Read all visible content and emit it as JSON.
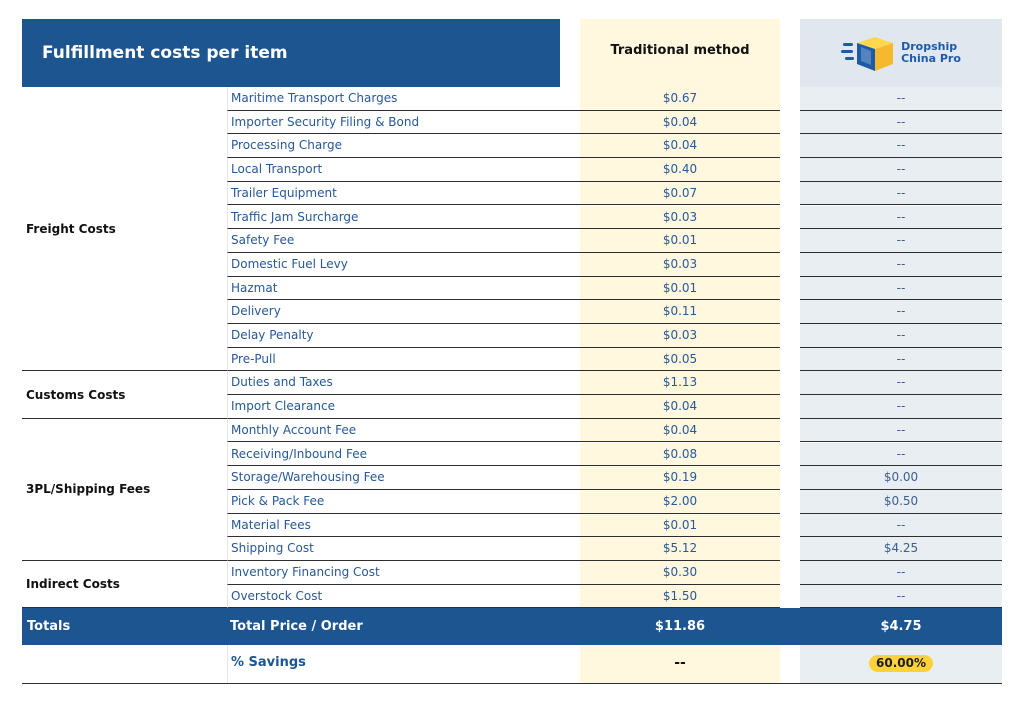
{
  "header": {
    "title": "Fulfillment costs per item",
    "traditional_label": "Traditional method",
    "brand_line1": "Dropship",
    "brand_line2": "China Pro"
  },
  "rows": [
    {
      "item": "Maritime Transport Charges",
      "traditional": "$0.67",
      "dcp": "--"
    },
    {
      "item": "Importer Security Filing & Bond",
      "traditional": "$0.04",
      "dcp": "--"
    },
    {
      "item": "Processing Charge",
      "traditional": "$0.04",
      "dcp": "--"
    },
    {
      "item": "Local Transport",
      "traditional": "$0.40",
      "dcp": "--"
    },
    {
      "item": "Trailer Equipment",
      "traditional": "$0.07",
      "dcp": "--"
    },
    {
      "item": "Traffic Jam Surcharge",
      "traditional": "$0.03",
      "dcp": "--"
    },
    {
      "item": "Safety Fee",
      "traditional": "$0.01",
      "dcp": "--"
    },
    {
      "item": "Domestic Fuel Levy",
      "traditional": "$0.03",
      "dcp": "--"
    },
    {
      "item": "Hazmat",
      "traditional": "$0.01",
      "dcp": "--"
    },
    {
      "item": "Delivery",
      "traditional": "$0.11",
      "dcp": "--"
    },
    {
      "item": "Delay Penalty",
      "traditional": "$0.03",
      "dcp": "--"
    },
    {
      "item": "Pre-Pull",
      "traditional": "$0.05",
      "dcp": "--"
    },
    {
      "item": "Duties and Taxes",
      "traditional": "$1.13",
      "dcp": "--"
    },
    {
      "item": "Import Clearance",
      "traditional": "$0.04",
      "dcp": "--"
    },
    {
      "item": "Monthly Account Fee",
      "traditional": "$0.04",
      "dcp": "--"
    },
    {
      "item": "Receiving/Inbound Fee",
      "traditional": "$0.08",
      "dcp": "--"
    },
    {
      "item": "Storage/Warehousing Fee",
      "traditional": "$0.19",
      "dcp": "$0.00"
    },
    {
      "item": "Pick & Pack Fee",
      "traditional": "$2.00",
      "dcp": "$0.50"
    },
    {
      "item": "Material Fees",
      "traditional": "$0.01",
      "dcp": "--"
    },
    {
      "item": "Shipping Cost",
      "traditional": "$5.12",
      "dcp": "$4.25"
    },
    {
      "item": "Inventory Financing Cost",
      "traditional": "$0.30",
      "dcp": "--"
    },
    {
      "item": "Overstock Cost",
      "traditional": "$1.50",
      "dcp": "--"
    }
  ],
  "groups": [
    {
      "name": "Freight Costs",
      "start": 0,
      "count": 12
    },
    {
      "name": "Customs Costs",
      "start": 12,
      "count": 2
    },
    {
      "name": "3PL/Shipping Fees",
      "start": 14,
      "count": 6
    },
    {
      "name": "Indirect Costs",
      "start": 20,
      "count": 2
    }
  ],
  "totals": {
    "label": "Totals",
    "sub_label": "Total Price / Order",
    "traditional": "$11.86",
    "dcp": "$4.75"
  },
  "savings": {
    "label": "% Savings",
    "traditional": "--",
    "dcp": "60.00%"
  },
  "colors": {
    "header_blue": "#1d5590",
    "traditional_bg": "#fff8de",
    "dcp_bg": "#e9eef3",
    "highlight": "#ffd23a"
  }
}
